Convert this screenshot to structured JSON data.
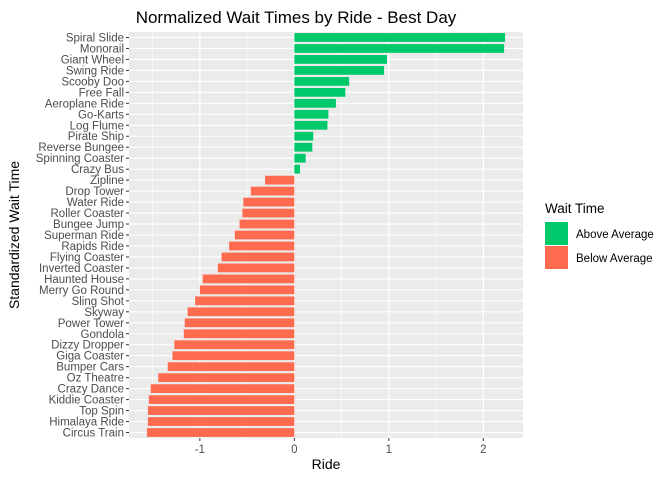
{
  "chart_data": {
    "type": "bar",
    "orientation": "horizontal",
    "title": "Normalized Wait Times by Ride - Best Day",
    "xlabel": "Ride",
    "ylabel": "Standardized Wait Time",
    "xlim": [
      -1.75,
      2.42
    ],
    "xticks": [
      -1,
      0,
      1,
      2
    ],
    "xtick_labels": [
      "-1",
      "0",
      "1",
      "2"
    ],
    "grid": true,
    "legend": {
      "title": "Wait Time",
      "placement": "right",
      "entries": [
        {
          "label": "Above Average",
          "color": "#00C96B"
        },
        {
          "label": "Below Average",
          "color": "#FF6B4F"
        }
      ]
    },
    "colors": {
      "panel_background": "#EBEBEB",
      "gridline": "#FFFFFF",
      "above": "#00C96B",
      "below": "#FF6B4F"
    },
    "categories": [
      "Spiral Slide",
      "Monorail",
      "Giant Wheel",
      "Swing Ride",
      "Scooby Doo",
      "Free Fall",
      "Aeroplane Ride",
      "Go-Karts",
      "Log Flume",
      "Pirate Ship",
      "Reverse Bungee",
      "Spinning Coaster",
      "Crazy Bus",
      "Zipline",
      "Drop Tower",
      "Water Ride",
      "Roller Coaster",
      "Bungee Jump",
      "Superman Ride",
      "Rapids Ride",
      "Flying Coaster",
      "Inverted Coaster",
      "Haunted House",
      "Merry Go Round",
      "Sling Shot",
      "Skyway",
      "Power Tower",
      "Gondola",
      "Dizzy Dropper",
      "Giga Coaster",
      "Bumper Cars",
      "Oz Theatre",
      "Crazy Dance",
      "Kiddie Coaster",
      "Top Spin",
      "Himalaya Ride",
      "Circus Train"
    ],
    "values": [
      2.23,
      2.22,
      0.98,
      0.95,
      0.58,
      0.54,
      0.44,
      0.36,
      0.35,
      0.2,
      0.19,
      0.12,
      0.06,
      -0.31,
      -0.46,
      -0.54,
      -0.55,
      -0.58,
      -0.63,
      -0.69,
      -0.77,
      -0.81,
      -0.97,
      -1.0,
      -1.05,
      -1.13,
      -1.16,
      -1.17,
      -1.27,
      -1.29,
      -1.34,
      -1.44,
      -1.52,
      -1.54,
      -1.55,
      -1.55,
      -1.56
    ],
    "groups": [
      "Above Average",
      "Above Average",
      "Above Average",
      "Above Average",
      "Above Average",
      "Above Average",
      "Above Average",
      "Above Average",
      "Above Average",
      "Above Average",
      "Above Average",
      "Above Average",
      "Above Average",
      "Below Average",
      "Below Average",
      "Below Average",
      "Below Average",
      "Below Average",
      "Below Average",
      "Below Average",
      "Below Average",
      "Below Average",
      "Below Average",
      "Below Average",
      "Below Average",
      "Below Average",
      "Below Average",
      "Below Average",
      "Below Average",
      "Below Average",
      "Below Average",
      "Below Average",
      "Below Average",
      "Below Average",
      "Below Average",
      "Below Average",
      "Below Average"
    ]
  }
}
